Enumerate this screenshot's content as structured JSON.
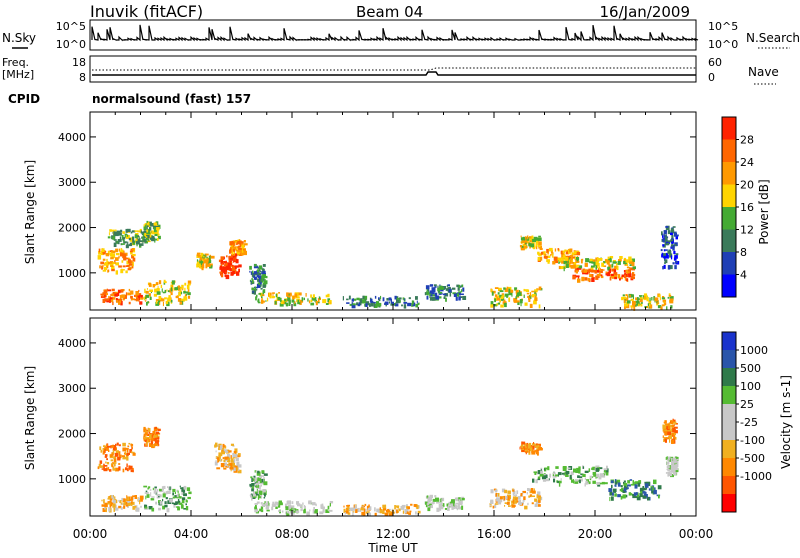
{
  "header": {
    "station": "Inuvik (fitACF)",
    "beam": "Beam 04",
    "date": "16/Jan/2009"
  },
  "noise_panel": {
    "left_label": "N.Sky",
    "left_ticks": [
      "10^5",
      "10^0"
    ],
    "right_label": "N.Search",
    "right_ticks": [
      "10^5",
      "10^0"
    ]
  },
  "freq_panel": {
    "left_label_line1": "Freq.",
    "left_label_line2": "[MHz]",
    "left_ticks": [
      "18",
      "8"
    ],
    "right_label": "Nave",
    "right_ticks": [
      "60",
      "0"
    ]
  },
  "cpid": {
    "label": "CPID",
    "value": "normalsound (fast) 157"
  },
  "colors": {
    "power_scale": [
      "#0000ff",
      "#1f3fb5",
      "#3a7a5a",
      "#44aa33",
      "#ffd400",
      "#ff9900",
      "#ff6600",
      "#ff2200"
    ],
    "velocity_scale": [
      "#1a33cc",
      "#2a55aa",
      "#2f7a4a",
      "#55bb33",
      "#c8c8c8",
      "#c8c8c8",
      "#f0b020",
      "#ff8800",
      "#ff5500",
      "#ff0000"
    ]
  },
  "chart_data": [
    {
      "type": "heatmap",
      "name": "power",
      "ylabel": "Slant Range [km]",
      "xlabel": "Time UT",
      "x_ticks": [
        "00:00",
        "04:00",
        "08:00",
        "12:00",
        "16:00",
        "20:00",
        "00:00"
      ],
      "y_ticks": [
        "1000",
        "2000",
        "3000",
        "4000"
      ],
      "ylim": [
        180,
        4550
      ],
      "colorbar_label": "Power [dB]",
      "colorbar_ticks": [
        "4",
        "8",
        "12",
        "16",
        "20",
        "24",
        "28"
      ],
      "blobs": [
        {
          "t": 1.2,
          "r": 500,
          "dt": 1.6,
          "dr": 300,
          "v": 27
        },
        {
          "t": 1.0,
          "r": 1300,
          "dt": 1.4,
          "dr": 500,
          "v": 20
        },
        {
          "t": 1.5,
          "r": 1800,
          "dt": 1.6,
          "dr": 350,
          "v": 14
        },
        {
          "t": 2.4,
          "r": 1950,
          "dt": 0.6,
          "dr": 400,
          "v": 12
        },
        {
          "t": 3.0,
          "r": 600,
          "dt": 1.8,
          "dr": 500,
          "v": 16
        },
        {
          "t": 4.5,
          "r": 1300,
          "dt": 0.6,
          "dr": 300,
          "v": 18
        },
        {
          "t": 5.5,
          "r": 1200,
          "dt": 0.8,
          "dr": 500,
          "v": 28
        },
        {
          "t": 5.8,
          "r": 1600,
          "dt": 0.6,
          "dr": 300,
          "v": 22
        },
        {
          "t": 6.6,
          "r": 900,
          "dt": 0.6,
          "dr": 600,
          "v": 9
        },
        {
          "t": 8.0,
          "r": 450,
          "dt": 3.0,
          "dr": 250,
          "v": 18
        },
        {
          "t": 11.5,
          "r": 400,
          "dt": 3.0,
          "dr": 200,
          "v": 10
        },
        {
          "t": 14.0,
          "r": 600,
          "dt": 1.5,
          "dr": 300,
          "v": 8
        },
        {
          "t": 16.8,
          "r": 500,
          "dt": 2.0,
          "dr": 400,
          "v": 16
        },
        {
          "t": 17.4,
          "r": 1700,
          "dt": 0.8,
          "dr": 250,
          "v": 16
        },
        {
          "t": 18.5,
          "r": 1400,
          "dt": 1.6,
          "dr": 300,
          "v": 20
        },
        {
          "t": 20.3,
          "r": 1000,
          "dt": 2.4,
          "dr": 250,
          "v": 24
        },
        {
          "t": 20.0,
          "r": 1250,
          "dt": 3.0,
          "dr": 250,
          "v": 18
        },
        {
          "t": 22.0,
          "r": 400,
          "dt": 2.0,
          "dr": 300,
          "v": 16
        },
        {
          "t": 22.9,
          "r": 1600,
          "dt": 0.6,
          "dr": 900,
          "v": 6
        }
      ]
    },
    {
      "type": "heatmap",
      "name": "velocity",
      "ylabel": "Slant Range [km]",
      "xlabel": "Time UT",
      "x_ticks": [
        "00:00",
        "04:00",
        "08:00",
        "12:00",
        "16:00",
        "20:00",
        "00:00"
      ],
      "y_ticks": [
        "1000",
        "2000",
        "3000",
        "4000"
      ],
      "ylim": [
        180,
        4550
      ],
      "colorbar_label": "Velocity [m s-1]",
      "colorbar_ticks": [
        "1000",
        "500",
        "100",
        "25",
        "-25",
        "-100",
        "-500",
        "-1000"
      ],
      "blobs": [
        {
          "t": 1.2,
          "r": 500,
          "dt": 1.6,
          "dr": 300,
          "v": 6
        },
        {
          "t": 1.0,
          "r": 1500,
          "dt": 1.4,
          "dr": 600,
          "v": 7
        },
        {
          "t": 2.4,
          "r": 1950,
          "dt": 0.6,
          "dr": 400,
          "v": 7
        },
        {
          "t": 3.0,
          "r": 600,
          "dt": 1.8,
          "dr": 500,
          "v": 3
        },
        {
          "t": 5.4,
          "r": 1500,
          "dt": 1.0,
          "dr": 600,
          "v": 6
        },
        {
          "t": 6.6,
          "r": 900,
          "dt": 0.6,
          "dr": 600,
          "v": 3
        },
        {
          "t": 8.0,
          "r": 400,
          "dt": 3.0,
          "dr": 250,
          "v": 4
        },
        {
          "t": 11.5,
          "r": 350,
          "dt": 3.0,
          "dr": 200,
          "v": 6
        },
        {
          "t": 14.0,
          "r": 500,
          "dt": 1.5,
          "dr": 300,
          "v": 4
        },
        {
          "t": 16.8,
          "r": 600,
          "dt": 2.0,
          "dr": 400,
          "v": 6
        },
        {
          "t": 17.4,
          "r": 1700,
          "dt": 0.8,
          "dr": 250,
          "v": 7
        },
        {
          "t": 19.0,
          "r": 1100,
          "dt": 3.0,
          "dr": 400,
          "v": 3
        },
        {
          "t": 21.5,
          "r": 800,
          "dt": 2.0,
          "dr": 400,
          "v": 2
        },
        {
          "t": 23.0,
          "r": 1300,
          "dt": 0.4,
          "dr": 400,
          "v": 4
        },
        {
          "t": 22.9,
          "r": 2100,
          "dt": 0.5,
          "dr": 500,
          "v": 7
        }
      ]
    }
  ]
}
